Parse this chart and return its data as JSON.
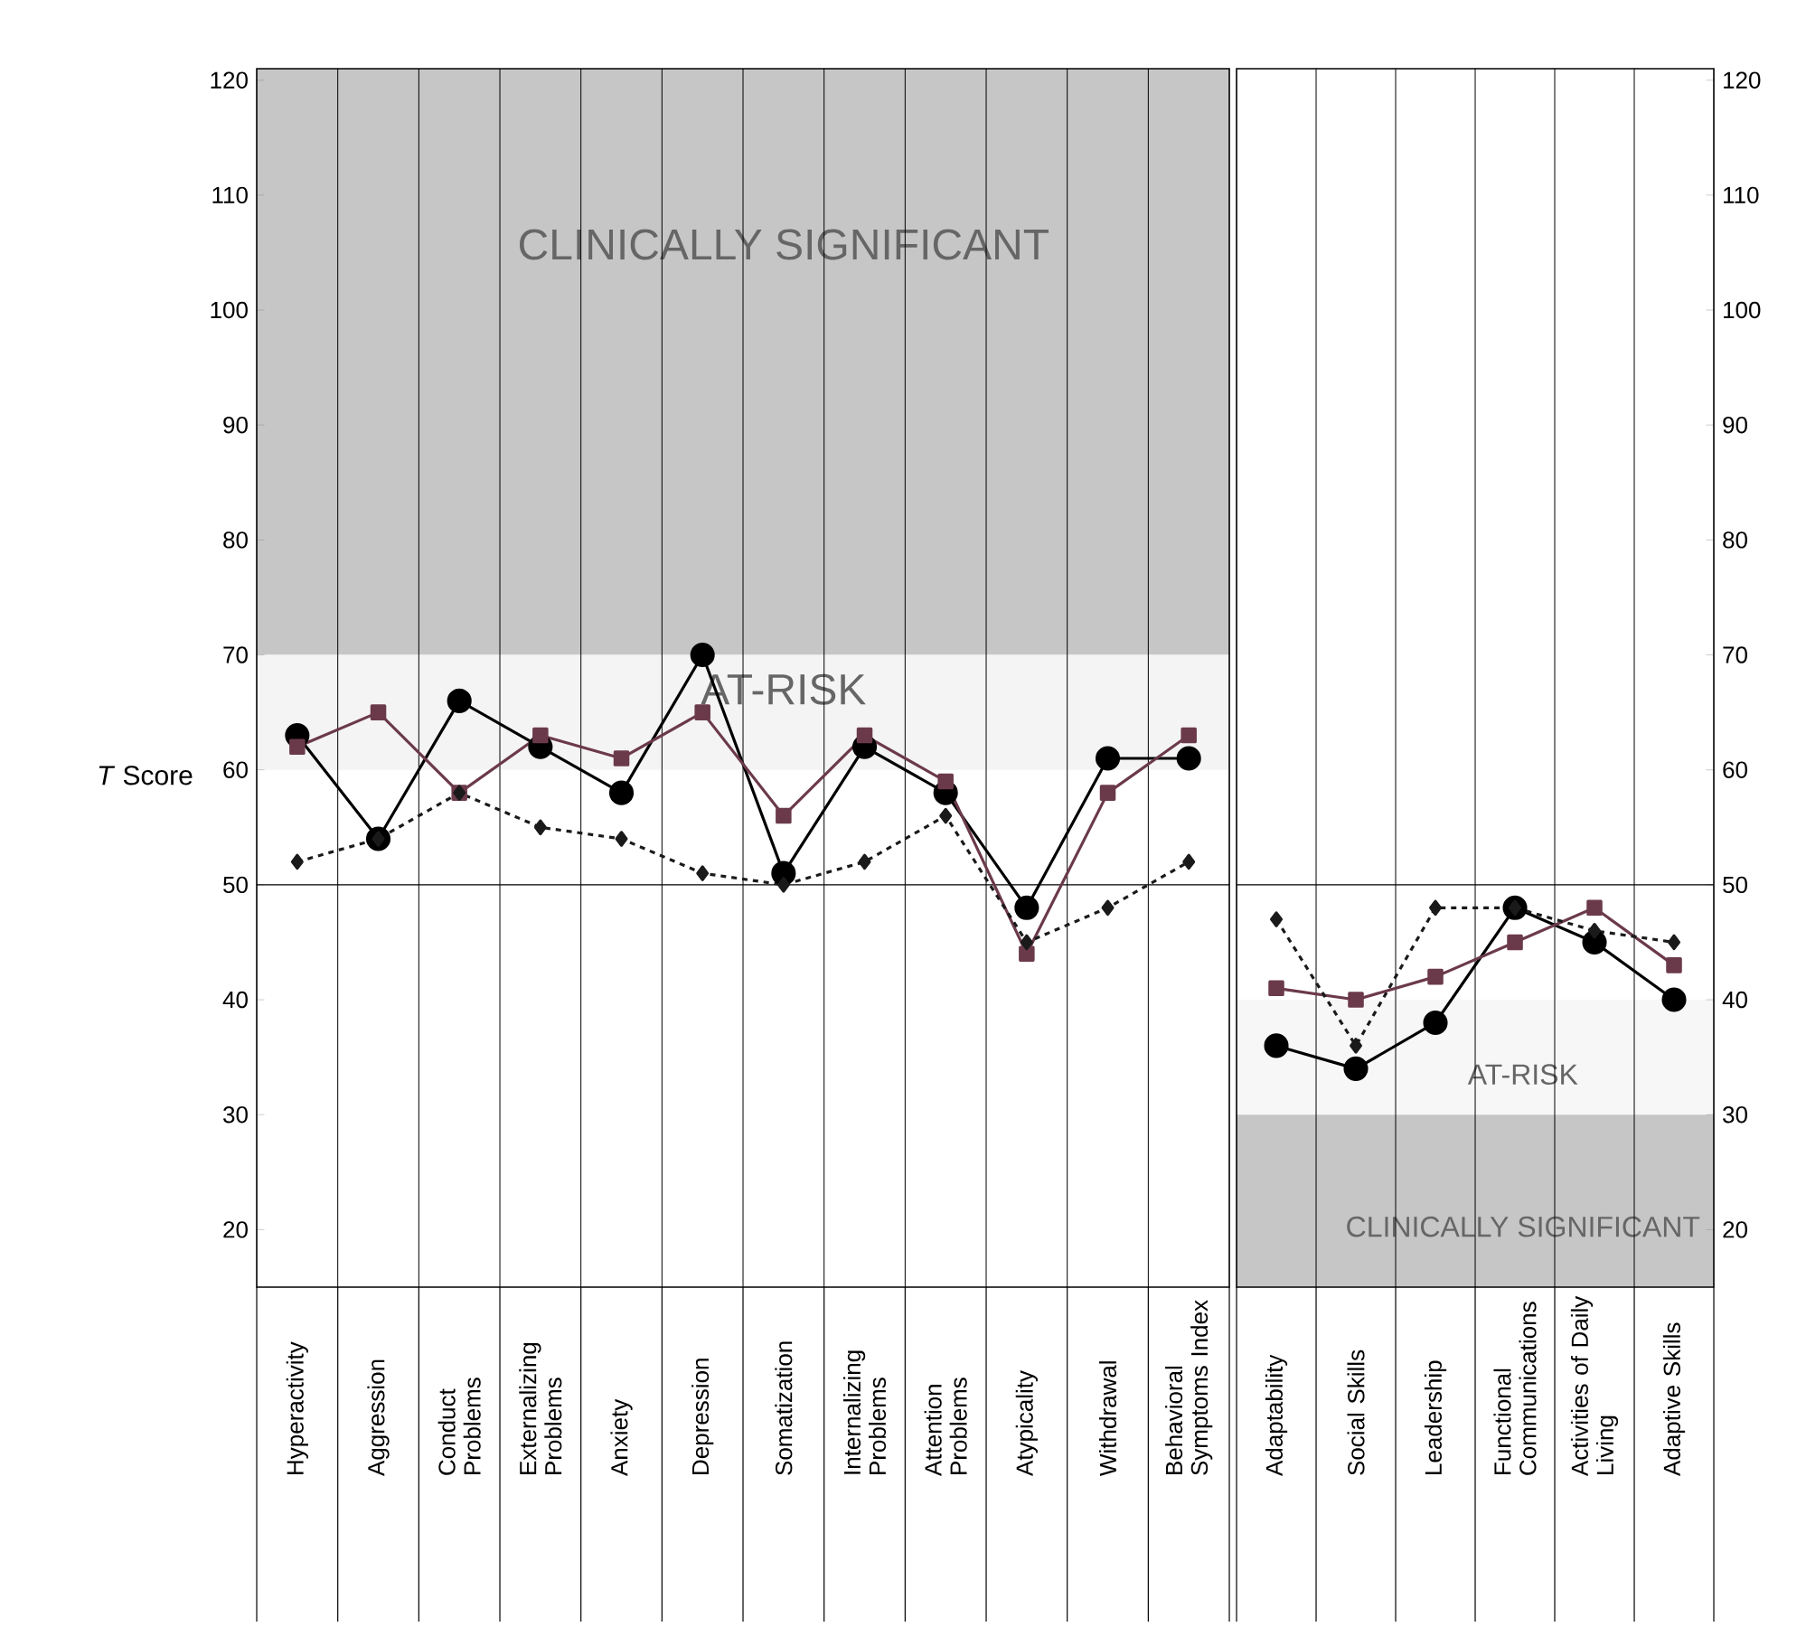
{
  "chart_data": [
    {
      "type": "line",
      "ylabel": "*T* Score",
      "grid": "x",
      "categories": [
        "Hyperactivity",
        "Aggression",
        "Conduct Problems",
        "Externalizing Problems",
        "Anxiety",
        "Depression",
        "Somatization",
        "Internalizing Problems",
        "Attention Problems",
        "Atypicality",
        "Withdrawal",
        "Behavioral Symptoms Index"
      ],
      "series": [
        {
          "color": "#000000",
          "marker": "circle",
          "line_style": "solid",
          "values": [
            63,
            54,
            66,
            62,
            58,
            70,
            51,
            62,
            58,
            48,
            61,
            61
          ]
        },
        {
          "color": "#6b3a4a",
          "marker": "square",
          "line_style": "solid",
          "values": [
            62,
            65,
            58,
            63,
            61,
            65,
            56,
            63,
            59,
            44,
            58,
            63
          ]
        },
        {
          "color": "#1a1a1a",
          "marker": "diamond",
          "line_style": "dashed",
          "values": [
            52,
            54,
            58,
            55,
            54,
            51,
            50,
            52,
            56,
            45,
            48,
            52
          ]
        }
      ],
      "ylim": [
        15,
        121
      ],
      "yticks": [
        20,
        30,
        40,
        50,
        60,
        70,
        80,
        90,
        100,
        110,
        120
      ],
      "bands": [
        {
          "axis": "y",
          "from": 70,
          "to": 121,
          "label": "CLINICALLY SIGNIFICANT",
          "color": "#c6c6c6"
        },
        {
          "axis": "y",
          "from": 60,
          "to": 70,
          "label": "AT-RISK",
          "color": "#f4f4f4"
        }
      ],
      "ref_lines": [
        {
          "axis": "y",
          "value": 50
        }
      ]
    },
    {
      "type": "line",
      "grid": "x",
      "categories": [
        "Adaptability",
        "Social Skills",
        "Leadership",
        "Functional Communications",
        "Activities of Daily Living",
        "Adaptive Skills"
      ],
      "series": [
        {
          "color": "#000000",
          "marker": "circle",
          "line_style": "solid",
          "values": [
            36,
            34,
            38,
            48,
            45,
            40
          ]
        },
        {
          "color": "#6b3a4a",
          "marker": "square",
          "line_style": "solid",
          "values": [
            41,
            40,
            42,
            45,
            48,
            43
          ]
        },
        {
          "color": "#1a1a1a",
          "marker": "diamond",
          "line_style": "dashed",
          "values": [
            47,
            36,
            48,
            48,
            46,
            45
          ]
        }
      ],
      "ylim": [
        15,
        121
      ],
      "yticks": [
        20,
        30,
        40,
        50,
        60,
        70,
        80,
        90,
        100,
        110,
        120
      ],
      "bands": [
        {
          "axis": "y",
          "from": 30,
          "to": 40,
          "label": "AT-RISK",
          "color": "#f7f7f7"
        },
        {
          "axis": "y",
          "from": 15,
          "to": 30,
          "label": "CLINICALLY SIGNIFICANT",
          "color": "#c6c6c6"
        }
      ],
      "ref_lines": [
        {
          "axis": "y",
          "value": 50
        }
      ]
    }
  ]
}
